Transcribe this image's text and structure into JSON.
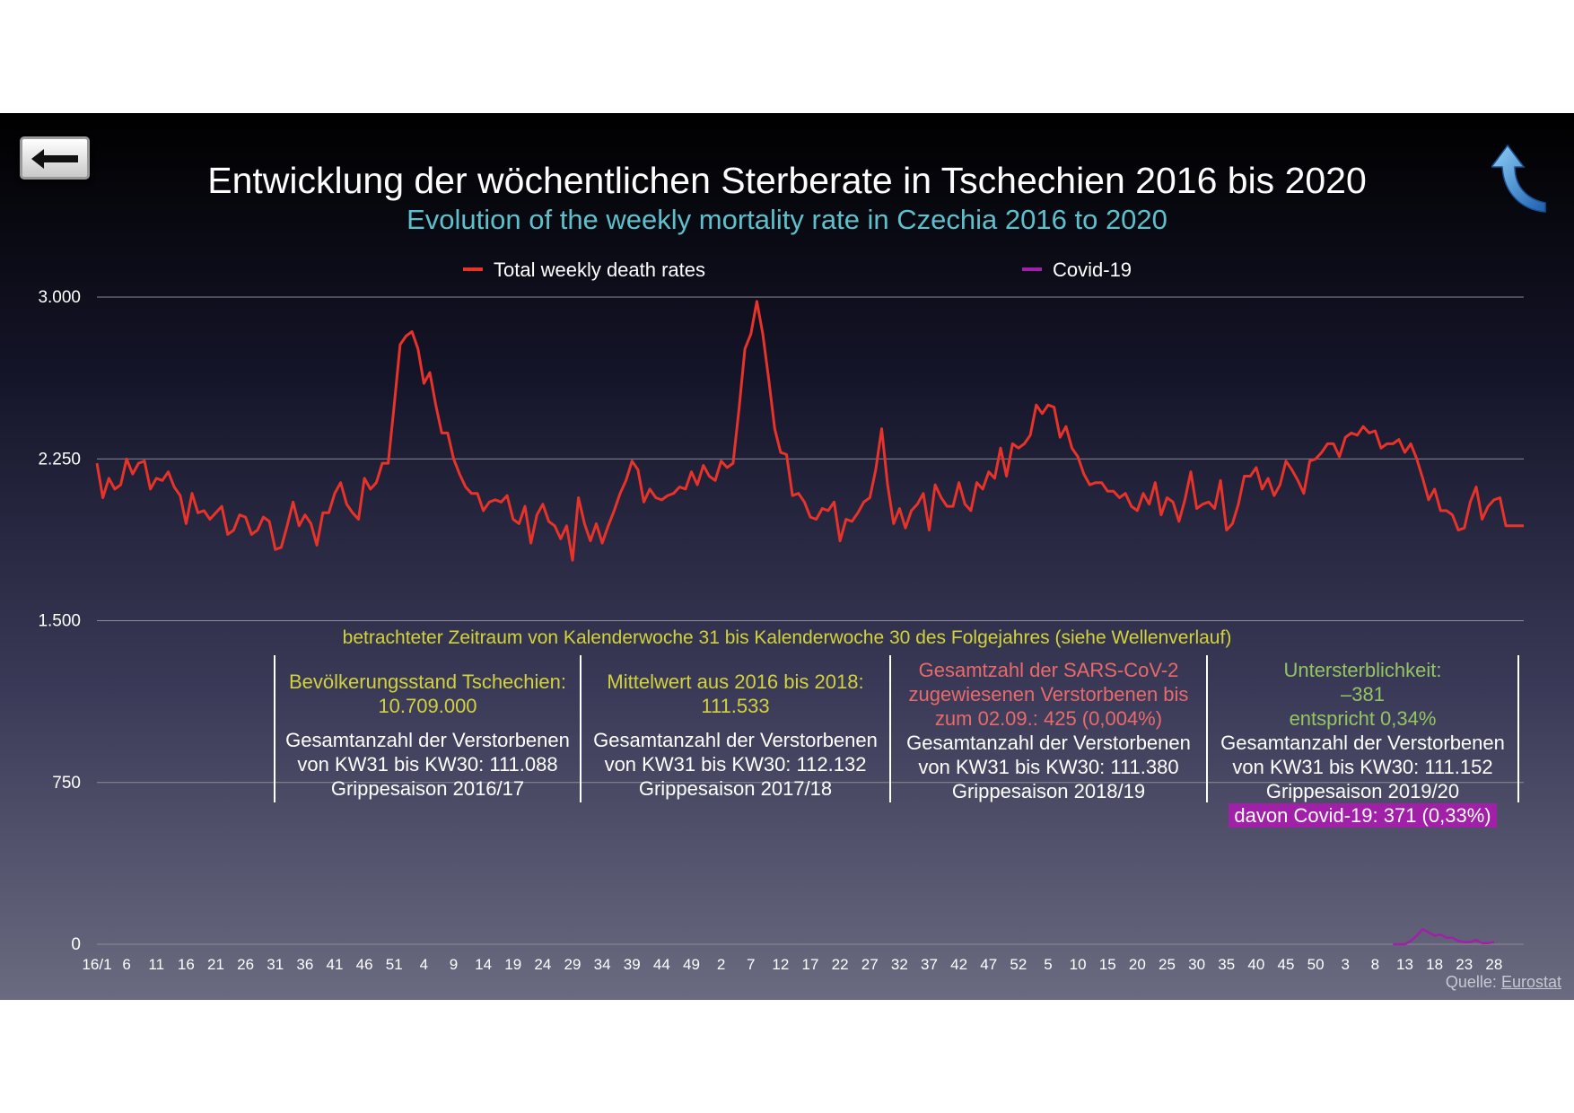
{
  "nav": {
    "back_icon": "arrow-left-icon",
    "up_icon": "curved-up-arrow-icon"
  },
  "title": "Entwicklung der wöchentlichen Sterberate in Tschechien 2016 bis 2020",
  "subtitle": "Evolution of the weekly mortality rate in Czechia 2016 to 2020",
  "period_note": "betrachteter Zeitraum von Kalenderwoche 31 bis Kalenderwoche 30 des Folgejahres (siehe Wellenverlauf)",
  "seasons": [
    {
      "top_lines": [
        "Bevölkerungsstand Tschechien:",
        "10.709.000"
      ],
      "top_color": "#d2d23a",
      "lines": [
        "Gesamtanzahl der Verstorbenen",
        "von KW31 bis KW30: 111.088",
        "Grippesaison 2016/17"
      ]
    },
    {
      "top_lines": [
        "Mittelwert aus 2016 bis 2018:",
        "111.533"
      ],
      "top_color": "#d2d23a",
      "lines": [
        "Gesamtanzahl der Verstorbenen",
        "von KW31 bis KW30: 112.132",
        "Grippesaison 2017/18"
      ]
    },
    {
      "top_lines": [
        "Gesamtzahl der SARS-CoV-2",
        "zugewiesenen Verstorbenen bis",
        "zum 02.09.: 425 (0,004%)"
      ],
      "top_color": "#e86a6a",
      "lines": [
        "Gesamtanzahl der Verstorbenen",
        "von KW31 bis KW30: 111.380",
        "Grippesaison 2018/19"
      ]
    },
    {
      "top_lines": [
        "Untersterblichkeit:",
        "–381",
        "entspricht 0,34%"
      ],
      "top_color": "#93c561",
      "lines": [
        "Gesamtanzahl der Verstorbenen",
        "von KW31 bis KW30: 111.152",
        "Grippesaison 2019/20"
      ],
      "highlight": "davon Covid-19: 371 (0,33%)"
    }
  ],
  "source": {
    "label": "Quelle:",
    "link": "Eurostat"
  },
  "chart_data": {
    "type": "line",
    "ylim": [
      0,
      3000
    ],
    "yticks": [
      0,
      750,
      1500,
      2250,
      3000
    ],
    "ytick_labels": [
      "0",
      "750",
      "1.500",
      "2.250",
      "3.000"
    ],
    "xtick_labels": [
      "16/1",
      "6",
      "11",
      "16",
      "21",
      "26",
      "31",
      "36",
      "41",
      "46",
      "51",
      "4",
      "9",
      "14",
      "19",
      "24",
      "29",
      "34",
      "39",
      "44",
      "49",
      "2",
      "7",
      "12",
      "17",
      "22",
      "27",
      "32",
      "37",
      "42",
      "47",
      "52",
      "5",
      "10",
      "15",
      "20",
      "25",
      "30",
      "35",
      "40",
      "45",
      "50",
      "3",
      "8",
      "13",
      "18",
      "23",
      "28"
    ],
    "grid": true,
    "legend": "top",
    "series": [
      {
        "name": "Total weekly death rates",
        "color": "#e8332a",
        "values": [
          2230,
          2070,
          2160,
          2110,
          2130,
          2250,
          2180,
          2230,
          2240,
          2110,
          2160,
          2150,
          2190,
          2120,
          2080,
          1950,
          2090,
          2000,
          2010,
          1970,
          2000,
          2030,
          1900,
          1920,
          1990,
          1980,
          1900,
          1920,
          1980,
          1960,
          1830,
          1840,
          1940,
          2050,
          1940,
          1990,
          1950,
          1850,
          2000,
          2000,
          2090,
          2140,
          2040,
          2000,
          1970,
          2160,
          2110,
          2140,
          2230,
          2230,
          2500,
          2780,
          2820,
          2840,
          2760,
          2600,
          2650,
          2500,
          2370,
          2370,
          2250,
          2180,
          2120,
          2090,
          2090,
          2010,
          2050,
          2060,
          2050,
          2080,
          1970,
          1950,
          2030,
          1860,
          1990,
          2040,
          1960,
          1940,
          1880,
          1940,
          1780,
          2070,
          1950,
          1870,
          1950,
          1860,
          1940,
          2010,
          2090,
          2150,
          2240,
          2200,
          2050,
          2110,
          2070,
          2060,
          2080,
          2090,
          2120,
          2110,
          2190,
          2130,
          2220,
          2170,
          2150,
          2240,
          2210,
          2230,
          2480,
          2760,
          2830,
          2980,
          2830,
          2620,
          2390,
          2280,
          2270,
          2080,
          2090,
          2050,
          1980,
          1970,
          2020,
          2010,
          2050,
          1870,
          1970,
          1960,
          2000,
          2050,
          2070,
          2200,
          2390,
          2130,
          1950,
          2020,
          1930,
          2010,
          2040,
          2090,
          1920,
          2130,
          2070,
          2030,
          2030,
          2140,
          2040,
          2010,
          2140,
          2110,
          2190,
          2160,
          2300,
          2170,
          2320,
          2300,
          2320,
          2360,
          2500,
          2460,
          2500,
          2490,
          2350,
          2400,
          2300,
          2260,
          2180,
          2130,
          2140,
          2140,
          2100,
          2100,
          2070,
          2090,
          2030,
          2010,
          2090,
          2040,
          2140,
          1990,
          2070,
          2050,
          1960,
          2060,
          2190,
          2020,
          2040,
          2050,
          2020,
          2150,
          1920,
          1950,
          2040,
          2170,
          2170,
          2210,
          2110,
          2160,
          2080,
          2130,
          2240,
          2200,
          2150,
          2090,
          2240,
          2250,
          2280,
          2320,
          2320,
          2260,
          2350,
          2370,
          2360,
          2400,
          2370,
          2380,
          2300,
          2320,
          2320,
          2340,
          2280,
          2320,
          2250,
          2160,
          2060,
          2110,
          2010,
          2010,
          1990,
          1920,
          1930,
          2050,
          2120,
          1970,
          2030,
          2060,
          2070,
          1940,
          1940,
          1940,
          1940
        ]
      },
      {
        "name": "Covid-19",
        "color": "#a020a8",
        "start_index": 218,
        "values": [
          0,
          0,
          0,
          15,
          40,
          70,
          55,
          40,
          45,
          30,
          30,
          15,
          10,
          10,
          20,
          5,
          5,
          10
        ]
      }
    ]
  }
}
